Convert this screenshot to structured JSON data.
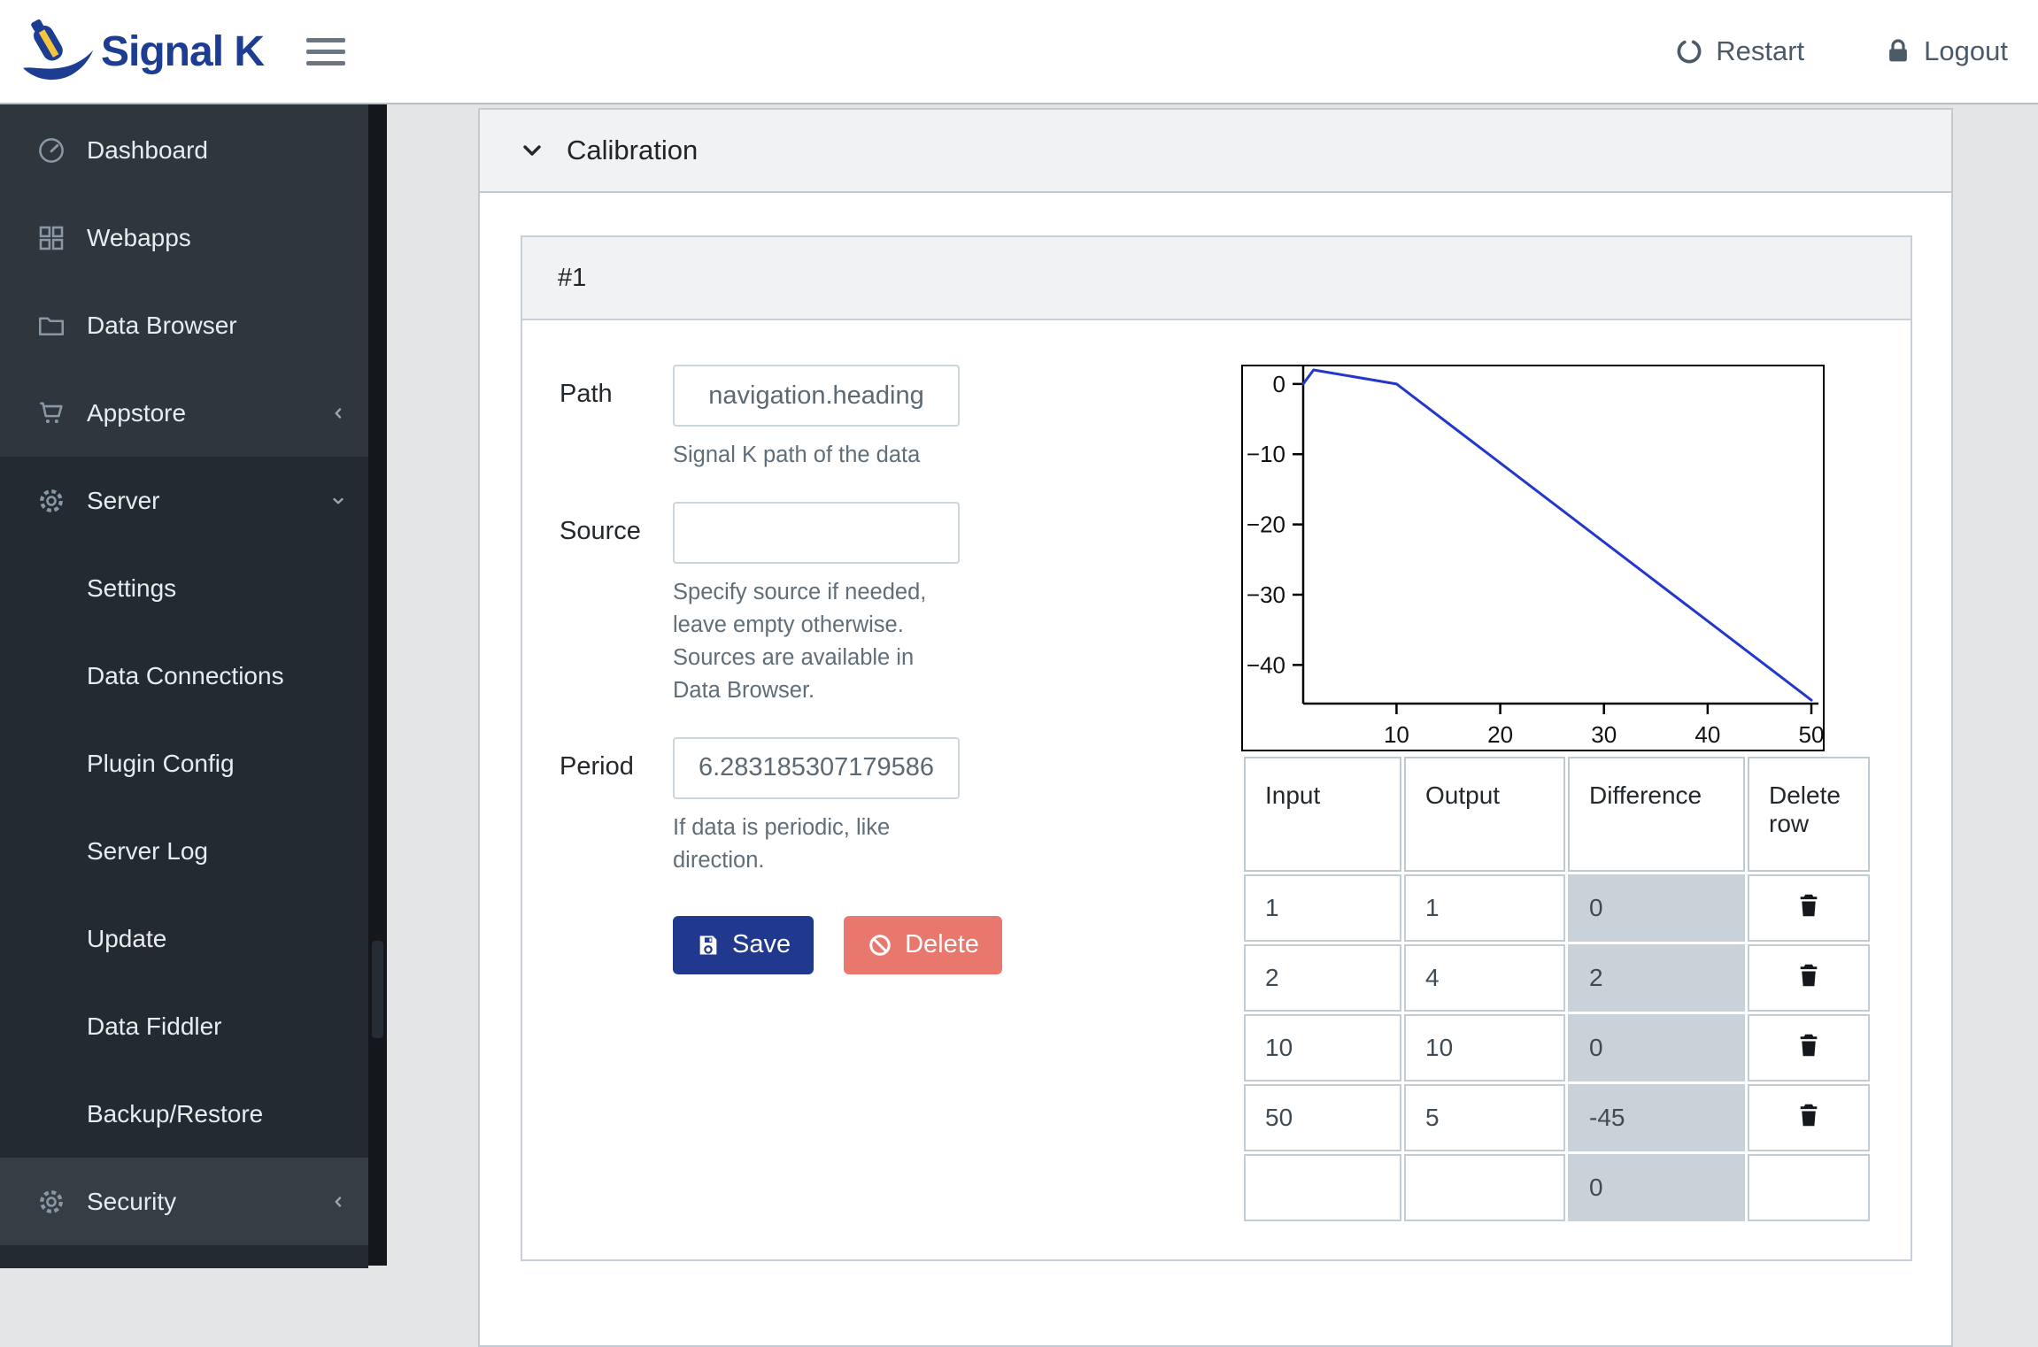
{
  "header": {
    "brand": "Signal K",
    "restart_label": "Restart",
    "logout_label": "Logout"
  },
  "sidebar": {
    "items": [
      {
        "label": "Dashboard",
        "icon": "speedometer-icon",
        "type": "link"
      },
      {
        "label": "Webapps",
        "icon": "grid-icon",
        "type": "link"
      },
      {
        "label": "Data Browser",
        "icon": "folder-icon",
        "type": "link"
      },
      {
        "label": "Appstore",
        "icon": "cart-icon",
        "type": "dropdown",
        "state": "closed"
      },
      {
        "label": "Server",
        "icon": "gear-icon",
        "type": "dropdown",
        "state": "open",
        "children": [
          "Settings",
          "Data Connections",
          "Plugin Config",
          "Server Log",
          "Update",
          "Data Fiddler",
          "Backup/Restore"
        ]
      },
      {
        "label": "Security",
        "icon": "gear-icon",
        "type": "dropdown",
        "state": "closed"
      }
    ]
  },
  "panel": {
    "title": "Calibration"
  },
  "card": {
    "title": "#1"
  },
  "form": {
    "path": {
      "label": "Path",
      "value": "navigation.heading",
      "help": "Signal K path of the data"
    },
    "source": {
      "label": "Source",
      "value": "",
      "help": "Specify source if needed, leave empty otherwise. Sources are available in Data Browser."
    },
    "period": {
      "label": "Period",
      "value": "6.283185307179586",
      "help": "If data is periodic, like direction."
    },
    "save_label": "Save",
    "delete_label": "Delete"
  },
  "chart_data": {
    "type": "line",
    "title": "",
    "xlabel": "",
    "ylabel": "",
    "x": [
      1,
      2,
      10,
      50
    ],
    "series": [
      {
        "name": "Difference",
        "values": [
          0,
          2,
          0,
          -45
        ]
      }
    ],
    "xlim": [
      1,
      50
    ],
    "ylim": [
      -45.5,
      2.5
    ],
    "xticks": [
      10,
      20,
      30,
      40,
      50
    ],
    "yticks": [
      0,
      -10,
      -20,
      -30,
      -40
    ],
    "grid": false,
    "legend": "none",
    "line_color": "#2337cd"
  },
  "table": {
    "columns": [
      "Input",
      "Output",
      "Difference",
      "Delete row"
    ],
    "rows": [
      {
        "input": "1",
        "output": "1",
        "difference": "0",
        "deletable": true
      },
      {
        "input": "2",
        "output": "4",
        "difference": "2",
        "deletable": true
      },
      {
        "input": "10",
        "output": "10",
        "difference": "0",
        "deletable": true
      },
      {
        "input": "50",
        "output": "5",
        "difference": "-45",
        "deletable": true
      },
      {
        "input": "",
        "output": "",
        "difference": "0",
        "deletable": false
      }
    ]
  },
  "colors": {
    "brand_navy": "#1d3d92",
    "brand_yellow": "#f5c53c",
    "save_blue": "#20398f",
    "delete_red": "#e8776e",
    "diff_cell": "#c9d2d8",
    "line_blue": "#2337cd"
  }
}
